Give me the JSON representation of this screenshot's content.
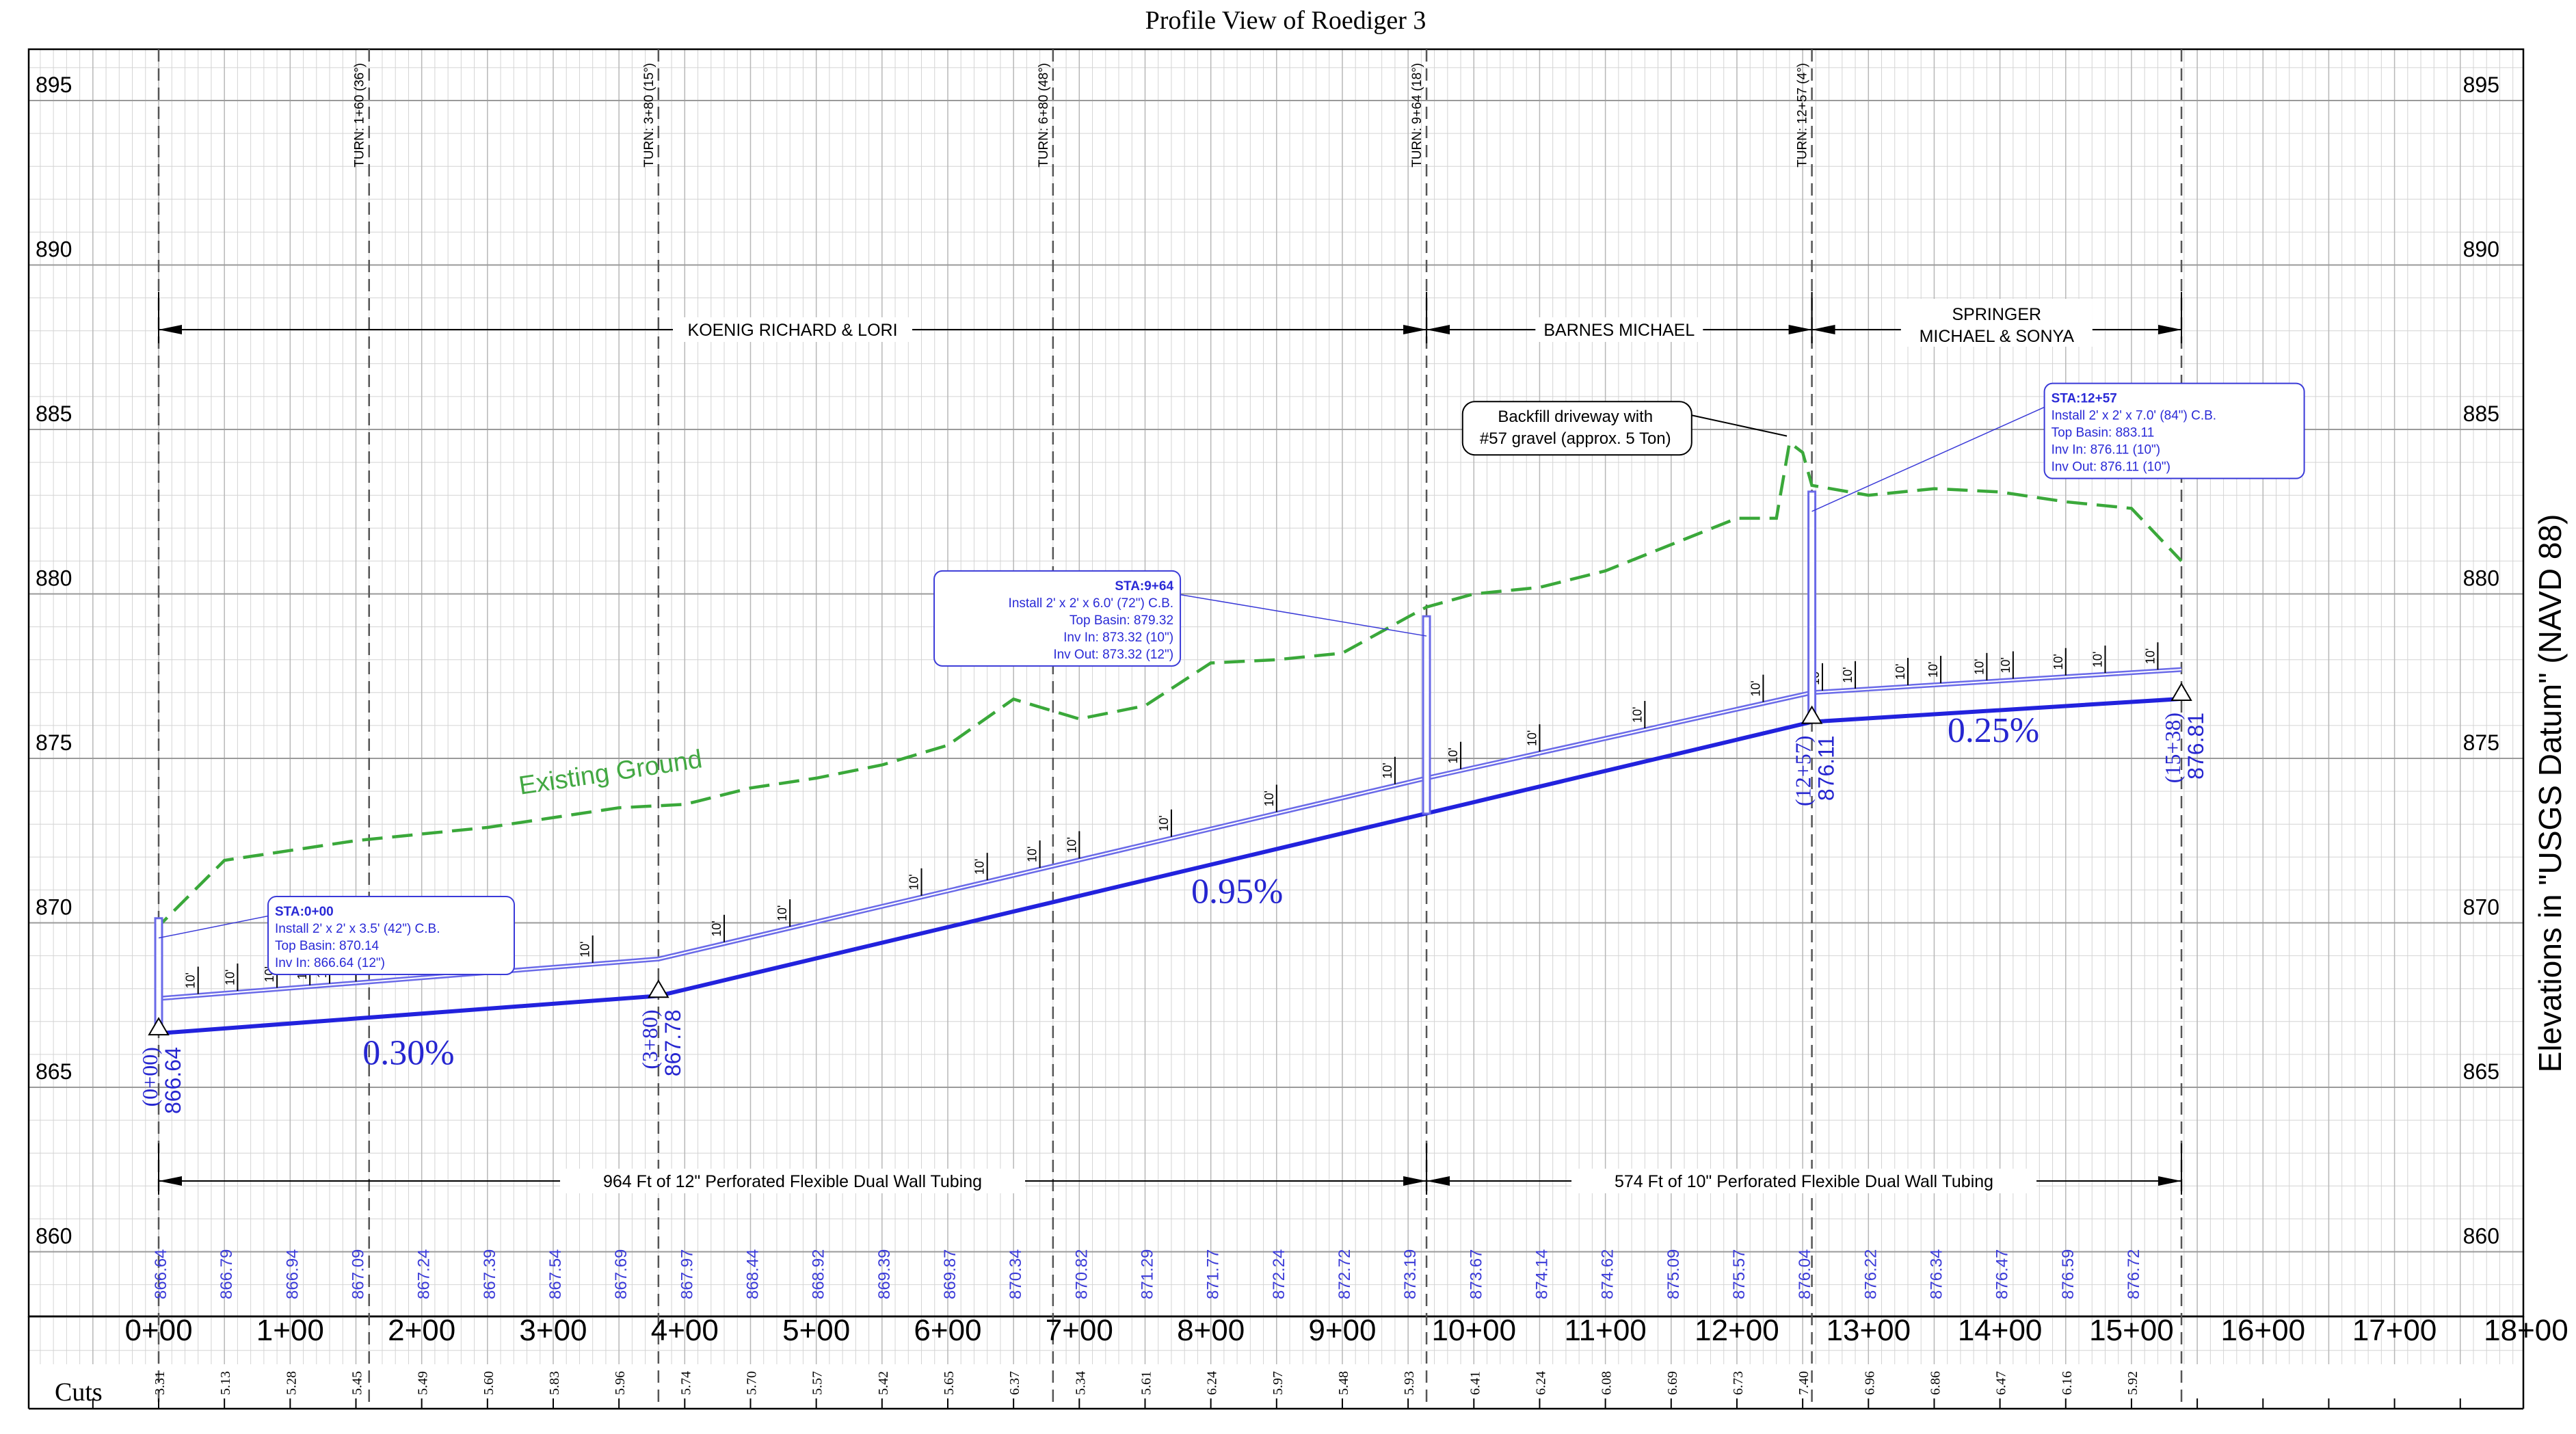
{
  "title": "Profile View of  Roediger 3",
  "y_axis_title": "Elevations in \"USGS Datum\" (NAVD 88)",
  "elevation_labels": [
    "895",
    "890",
    "885",
    "880",
    "875",
    "870",
    "865",
    "860"
  ],
  "elevation_values": [
    895,
    890,
    885,
    880,
    875,
    870,
    865,
    860
  ],
  "station_labels": [
    "0+00",
    "1+00",
    "2+00",
    "3+00",
    "4+00",
    "5+00",
    "6+00",
    "7+00",
    "8+00",
    "9+00",
    "10+00",
    "11+00",
    "12+00",
    "13+00",
    "14+00",
    "15+00",
    "16+00",
    "17+00",
    "18+00"
  ],
  "turns": [
    {
      "label": "TURN: 1+60 (36°)",
      "sta": 160
    },
    {
      "label": "TURN: 3+80 (15°)",
      "sta": 380
    },
    {
      "label": "TURN: 6+80 (48°)",
      "sta": 680
    },
    {
      "label": "TURN: 9+64 (18°)",
      "sta": 964
    },
    {
      "label": "TURN: 12+57 (4°)",
      "sta": 1257
    }
  ],
  "property_owners": [
    {
      "label": "KOENIG  RICHARD & LORI",
      "from": 0,
      "to": 964
    },
    {
      "label": "BARNES  MICHAEL",
      "from": 964,
      "to": 1257
    },
    {
      "label_line1": "SPRINGER",
      "label_line2": "MICHAEL & SONYA",
      "from": 1257,
      "to": 1538
    }
  ],
  "pipe_runs": [
    {
      "label": "964 Ft of 12\" Perforated Flexible Dual Wall Tubing",
      "from": 0,
      "to": 964
    },
    {
      "label": "574 Ft of 10\" Perforated Flexible Dual Wall Tubing",
      "from": 964,
      "to": 1538
    }
  ],
  "invert_labels": [
    "866.64",
    "866.79",
    "866.94",
    "867.09",
    "867.24",
    "867.39",
    "867.54",
    "867.69",
    "867.97",
    "868.44",
    "868.92",
    "869.39",
    "869.87",
    "870.34",
    "870.82",
    "871.29",
    "871.77",
    "872.24",
    "872.72",
    "873.19",
    "873.67",
    "874.14",
    "874.62",
    "875.09",
    "875.57",
    "876.04",
    "876.22",
    "876.34",
    "876.47",
    "876.59",
    "876.72"
  ],
  "cuts_label": "Cuts",
  "cut_values": [
    "3.31",
    "5.13",
    "5.28",
    "5.45",
    "5.49",
    "5.60",
    "5.83",
    "5.96",
    "5.74",
    "5.70",
    "5.57",
    "5.42",
    "5.65",
    "6.37",
    "5.34",
    "5.61",
    "6.24",
    "5.97",
    "5.48",
    "5.93",
    "6.41",
    "6.24",
    "6.08",
    "6.69",
    "6.73",
    "7.40",
    "6.96",
    "6.86",
    "6.47",
    "6.16",
    "5.92"
  ],
  "cut_stations": [
    0,
    50,
    100,
    150,
    200,
    250,
    300,
    350,
    400,
    450,
    500,
    550,
    600,
    650,
    700,
    750,
    800,
    850,
    900,
    950,
    1000,
    1050,
    1100,
    1150,
    1200,
    1250,
    1300,
    1350,
    1400,
    1450,
    1500
  ],
  "slopes": [
    {
      "label": "0.30%",
      "sta": 190,
      "elev": 865.7
    },
    {
      "label": "0.95%",
      "sta": 820,
      "elev": 870.6
    },
    {
      "label": "0.25%",
      "sta": 1395,
      "elev": 875.5
    }
  ],
  "pvi_points": [
    {
      "sta_label": "(0+00)",
      "elev_label": "866.64",
      "sta": 0,
      "elev": 866.64
    },
    {
      "sta_label": "(3+80)",
      "elev_label": "867.78",
      "sta": 380,
      "elev": 867.78
    },
    {
      "sta_label": "(12+57)",
      "elev_label": "876.11",
      "sta": 1257,
      "elev": 876.11
    },
    {
      "sta_label": "(15+38)",
      "elev_label": "876.81",
      "sta": 1538,
      "elev": 876.81
    }
  ],
  "basins": [
    {
      "sta": 0,
      "lines": [
        "STA:0+00",
        "Install 2' x 2' x 3.5' (42\") C.B.",
        "Top Basin:  870.14",
        "Inv In: 866.64 (12\")"
      ],
      "top": 870.14,
      "inv": 866.64
    },
    {
      "sta": 964,
      "lines": [
        "STA:9+64",
        "Install 2' x 2' x 6.0' (72\") C.B.",
        "Top Basin:  879.32",
        "Inv In: 873.32 (10\")",
        "Inv Out: 873.32 (12\")"
      ],
      "top": 879.32,
      "inv": 873.32
    },
    {
      "sta": 1257,
      "lines": [
        "STA:12+57",
        "Install 2' x 2' x 7.0' (84\") C.B.",
        "Top Basin:  883.11",
        "Inv In: 876.11 (10\")",
        "Inv Out: 876.11 (10\")"
      ],
      "top": 883.11,
      "inv": 876.11
    }
  ],
  "note": {
    "line1": "Backfill driveway with",
    "line2": "#57 gravel (approx. 5 Ton)"
  },
  "ground_label": "Existing Ground",
  "ground_profile": [
    [
      0,
      866.9
    ],
    [
      0,
      869.9
    ],
    [
      50,
      871.9
    ],
    [
      100,
      872.2
    ],
    [
      150,
      872.5
    ],
    [
      200,
      872.7
    ],
    [
      250,
      872.9
    ],
    [
      300,
      873.2
    ],
    [
      350,
      873.5
    ],
    [
      400,
      873.6
    ],
    [
      450,
      874.1
    ],
    [
      500,
      874.4
    ],
    [
      550,
      874.8
    ],
    [
      600,
      875.4
    ],
    [
      650,
      876.8
    ],
    [
      700,
      876.2
    ],
    [
      750,
      876.6
    ],
    [
      800,
      877.9
    ],
    [
      850,
      878.0
    ],
    [
      900,
      878.2
    ],
    [
      950,
      879.3
    ],
    [
      964,
      879.6
    ],
    [
      1000,
      880.0
    ],
    [
      1050,
      880.2
    ],
    [
      1100,
      880.7
    ],
    [
      1150,
      881.5
    ],
    [
      1200,
      882.3
    ],
    [
      1230,
      882.3
    ],
    [
      1240,
      884.6
    ],
    [
      1250,
      884.3
    ],
    [
      1257,
      883.3
    ],
    [
      1300,
      883.0
    ],
    [
      1350,
      883.2
    ],
    [
      1400,
      883.1
    ],
    [
      1450,
      882.8
    ],
    [
      1500,
      882.6
    ],
    [
      1538,
      881.0
    ]
  ],
  "pipe_ten_tags": [
    "10'",
    "10'",
    "10'",
    "10'",
    "10'",
    "10'",
    "10'",
    "10'",
    "10'",
    "10'",
    "10'",
    "10'",
    "10'",
    "10'",
    "10'",
    "10'",
    "10'",
    "10'",
    "10'",
    "10'",
    "10'",
    "10'",
    "10'",
    "10'",
    "10'",
    "10'",
    "10'",
    "10'",
    "10'",
    "10'"
  ],
  "ten_tag_stations": [
    30,
    60,
    90,
    115,
    130,
    150,
    250,
    330,
    430,
    480,
    580,
    630,
    670,
    700,
    770,
    850,
    940,
    990,
    1050,
    1130,
    1220,
    1265,
    1290,
    1330,
    1355,
    1390,
    1410,
    1450,
    1480,
    1520
  ],
  "colors": {
    "design": "#2222dd",
    "top": "#6a6ae8",
    "ground": "#3aa83a",
    "grid": "#b0b0b0"
  }
}
